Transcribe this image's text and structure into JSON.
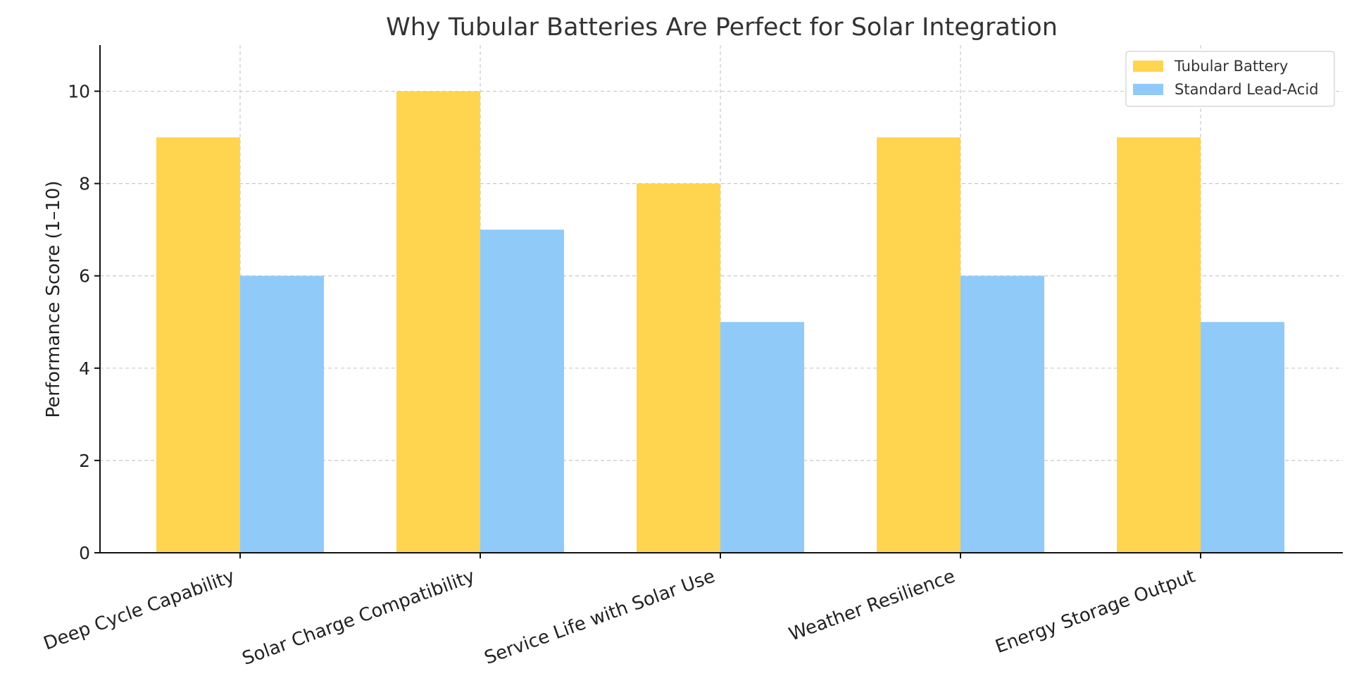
{
  "chart_data": {
    "type": "bar",
    "title": "Why Tubular Batteries Are Perfect for Solar Integration",
    "xlabel": "",
    "ylabel": "Performance Score (1–10)",
    "categories": [
      "Deep Cycle Capability",
      "Solar Charge Compatibility",
      "Service Life with Solar Use",
      "Weather Resilience",
      "Energy Storage Output"
    ],
    "series": [
      {
        "name": "Tubular Battery",
        "color": "#FFD54F",
        "values": [
          9,
          10,
          8,
          9,
          9
        ]
      },
      {
        "name": "Standard Lead-Acid",
        "color": "#90CAF9",
        "values": [
          6,
          7,
          5,
          6,
          5
        ]
      }
    ],
    "ylim": [
      0,
      11
    ],
    "yticks": [
      "0",
      "2",
      "4",
      "6",
      "8",
      "10"
    ],
    "grid": true,
    "legend_position": "top-right"
  }
}
